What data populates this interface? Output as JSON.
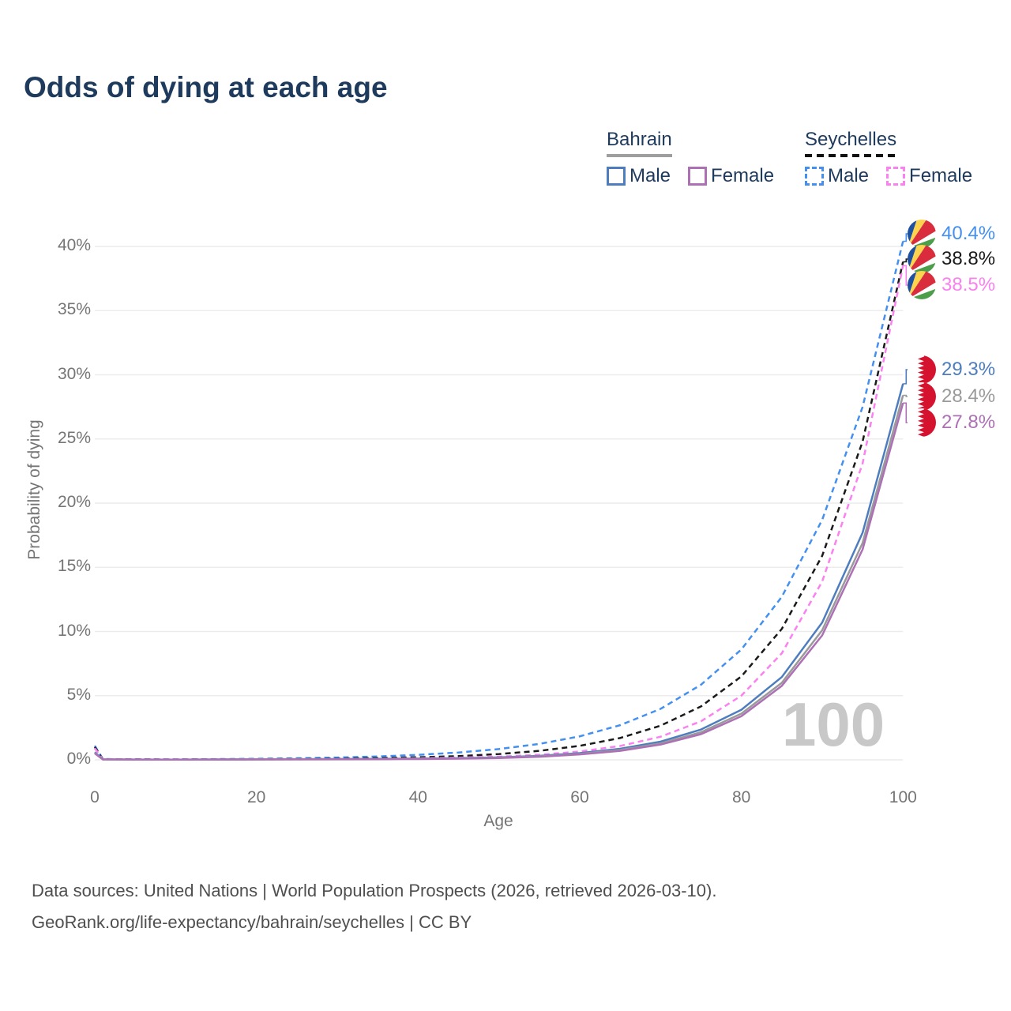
{
  "title": "Odds of dying at each age",
  "legend": {
    "groups": [
      {
        "title": "Bahrain",
        "line_style": "solid",
        "items": [
          {
            "label": "Male"
          },
          {
            "label": "Female"
          }
        ]
      },
      {
        "title": "Seychelles",
        "line_style": "dashed",
        "items": [
          {
            "label": "Male"
          },
          {
            "label": "Female"
          }
        ]
      }
    ]
  },
  "axes": {
    "x": {
      "label": "Age",
      "ticks": [
        0,
        20,
        40,
        60,
        80,
        100
      ]
    },
    "y": {
      "label": "Probability of dying",
      "tick_labels": [
        "0%",
        "5%",
        "10%",
        "15%",
        "20%",
        "25%",
        "30%",
        "35%",
        "40%"
      ],
      "tick_values": [
        0,
        5,
        10,
        15,
        20,
        25,
        30,
        35,
        40
      ]
    }
  },
  "watermark": "100",
  "end_labels": {
    "seychelles": [
      {
        "series": "Seychelles Male",
        "value": "40.4%"
      },
      {
        "series": "Seychelles Both sexes",
        "value": "38.8%"
      },
      {
        "series": "Seychelles Female",
        "value": "38.5%"
      }
    ],
    "bahrain": [
      {
        "series": "Bahrain Male",
        "value": "29.3%"
      },
      {
        "series": "Bahrain Both sexes",
        "value": "28.4%"
      },
      {
        "series": "Bahrain Female",
        "value": "27.8%"
      }
    ]
  },
  "footer": {
    "line1": "Data sources: United Nations | World Population Prospects (2026, retrieved 2026-03-10).",
    "line2": "GeoRank.org/life-expectancy/bahrain/seychelles | CC BY"
  },
  "colors": {
    "title_text": "#1e3a5c",
    "axis_text": "#757575",
    "footer_text": "#4f4f4f",
    "grid": "#ececec",
    "watermark": "#c8c8c8",
    "bahrain_male": "#4d7dbe",
    "bahrain_both": "#9a9a9a",
    "bahrain_female": "#ad70b5",
    "seychelles_male": "#4490f0",
    "seychelles_both": "#1a1a1a",
    "seychelles_female": "#fb80f0",
    "legend_underline_bahrain": "#9e9e9e",
    "legend_underline_seychelles": "#111111",
    "flag_sc_blue": "#1e50a0",
    "flag_sc_yellow": "#fcd34d",
    "flag_sc_red": "#d92d3e",
    "flag_sc_green": "#4d9e4a",
    "flag_bh_red": "#d5132f"
  },
  "chart_data": {
    "type": "line",
    "title": "Odds of dying at each age",
    "xlabel": "Age",
    "ylabel": "Probability of dying",
    "xlim": [
      0,
      100
    ],
    "ylim": [
      0,
      41
    ],
    "grid": "horizontal",
    "legend_position": "top-right",
    "x": [
      0,
      1,
      5,
      10,
      15,
      20,
      25,
      30,
      35,
      40,
      45,
      50,
      55,
      60,
      65,
      70,
      75,
      80,
      85,
      90,
      95,
      100
    ],
    "series": [
      {
        "id": "seychelles-male",
        "name": "Seychelles Male",
        "color": "#4490f0",
        "dash": true,
        "values": [
          1.1,
          0.06,
          0.04,
          0.04,
          0.055,
          0.083,
          0.12,
          0.18,
          0.26,
          0.39,
          0.57,
          0.84,
          1.24,
          1.83,
          2.7,
          3.97,
          5.85,
          8.6,
          12.7,
          18.7,
          27.5,
          40.4
        ]
      },
      {
        "id": "seychelles-both",
        "name": "Seychelles Both sexes",
        "color": "#1a1a1a",
        "dash": true,
        "values": [
          1.0,
          0.05,
          0.03,
          0.025,
          0.03,
          0.045,
          0.065,
          0.095,
          0.14,
          0.2,
          0.29,
          0.45,
          0.7,
          1.09,
          1.7,
          2.66,
          4.16,
          6.5,
          10.2,
          15.9,
          24.8,
          38.8
        ]
      },
      {
        "id": "seychelles-female",
        "name": "Seychelles Female",
        "color": "#fb80f0",
        "dash": true,
        "values": [
          0.9,
          0.04,
          0.025,
          0.02,
          0.022,
          0.03,
          0.04,
          0.055,
          0.08,
          0.12,
          0.17,
          0.25,
          0.39,
          0.65,
          1.08,
          1.8,
          3.0,
          5.0,
          8.3,
          13.9,
          23.1,
          38.5
        ]
      },
      {
        "id": "bahrain-male",
        "name": "Bahrain Male",
        "color": "#4d7dbe",
        "dash": false,
        "values": [
          0.6,
          0.04,
          0.02,
          0.018,
          0.03,
          0.045,
          0.055,
          0.065,
          0.08,
          0.1,
          0.13,
          0.19,
          0.31,
          0.52,
          0.86,
          1.42,
          2.36,
          3.9,
          6.45,
          10.7,
          17.7,
          29.3
        ]
      },
      {
        "id": "bahrain-both",
        "name": "Bahrain Both sexes",
        "color": "#9a9a9a",
        "dash": false,
        "values": [
          0.55,
          0.035,
          0.018,
          0.015,
          0.025,
          0.035,
          0.045,
          0.055,
          0.065,
          0.085,
          0.11,
          0.16,
          0.27,
          0.46,
          0.77,
          1.28,
          2.15,
          3.6,
          6.0,
          10.1,
          16.9,
          28.4
        ]
      },
      {
        "id": "bahrain-female",
        "name": "Bahrain Female",
        "color": "#ad70b5",
        "dash": false,
        "values": [
          0.5,
          0.03,
          0.015,
          0.013,
          0.018,
          0.025,
          0.032,
          0.04,
          0.05,
          0.065,
          0.09,
          0.14,
          0.24,
          0.42,
          0.7,
          1.19,
          2.0,
          3.4,
          5.76,
          9.7,
          16.4,
          27.8
        ]
      }
    ],
    "end_values_at_age_100": {
      "seychelles_male": 40.4,
      "seychelles_both": 38.8,
      "seychelles_female": 38.5,
      "bahrain_male": 29.3,
      "bahrain_both": 28.4,
      "bahrain_female": 27.8
    },
    "highlighted_age": 100
  }
}
